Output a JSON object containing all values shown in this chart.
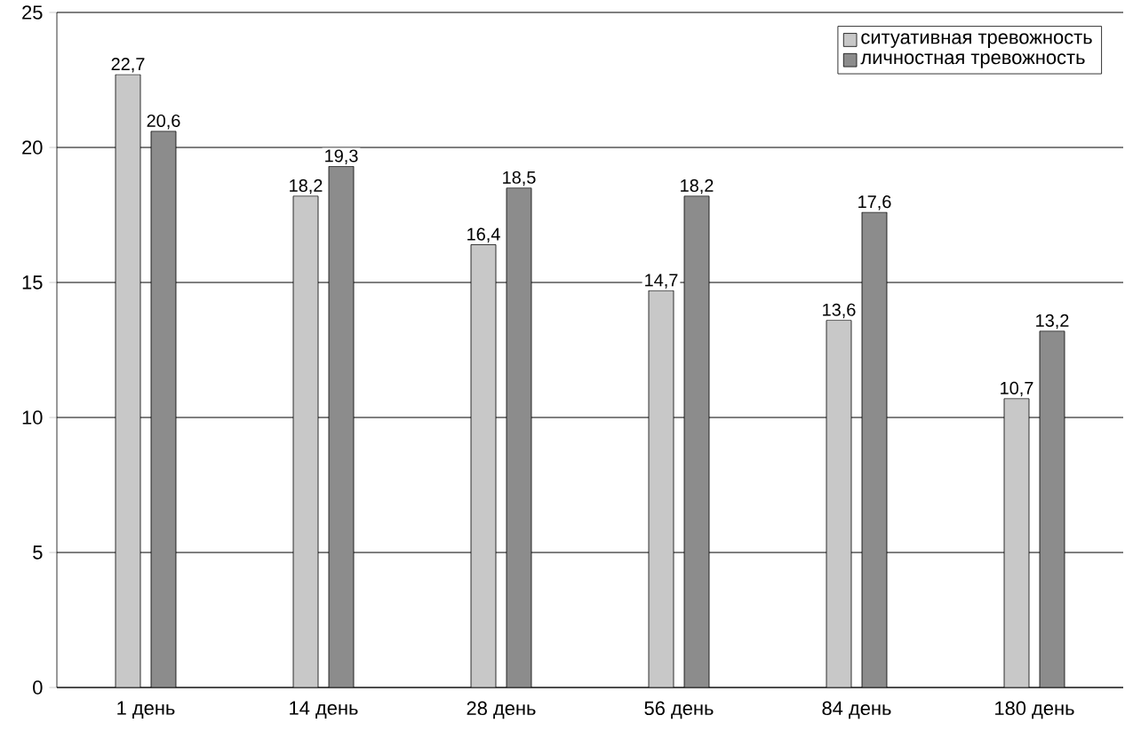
{
  "chart_data": {
    "type": "bar",
    "categories": [
      "1 день",
      "14 день",
      "28 день",
      "56 день",
      "84 день",
      "180 день"
    ],
    "series": [
      {
        "name": "ситуативная тревожность",
        "color": "#c8c8c8",
        "values": [
          22.7,
          18.2,
          16.4,
          14.7,
          13.6,
          10.7
        ],
        "value_labels": [
          "22,7",
          "18,2",
          "16,4",
          "14,7",
          "13,6",
          "10,7"
        ]
      },
      {
        "name": "личностная тревожность",
        "color": "#8c8c8c",
        "values": [
          20.6,
          19.3,
          18.5,
          18.2,
          17.6,
          13.2
        ],
        "value_labels": [
          "20,6",
          "19,3",
          "18,5",
          "18,2",
          "17,6",
          "13,2"
        ]
      }
    ],
    "ylim": [
      0,
      25
    ],
    "yticks": [
      0,
      5,
      10,
      15,
      20,
      25
    ],
    "grid": "y",
    "legend": "top right"
  }
}
